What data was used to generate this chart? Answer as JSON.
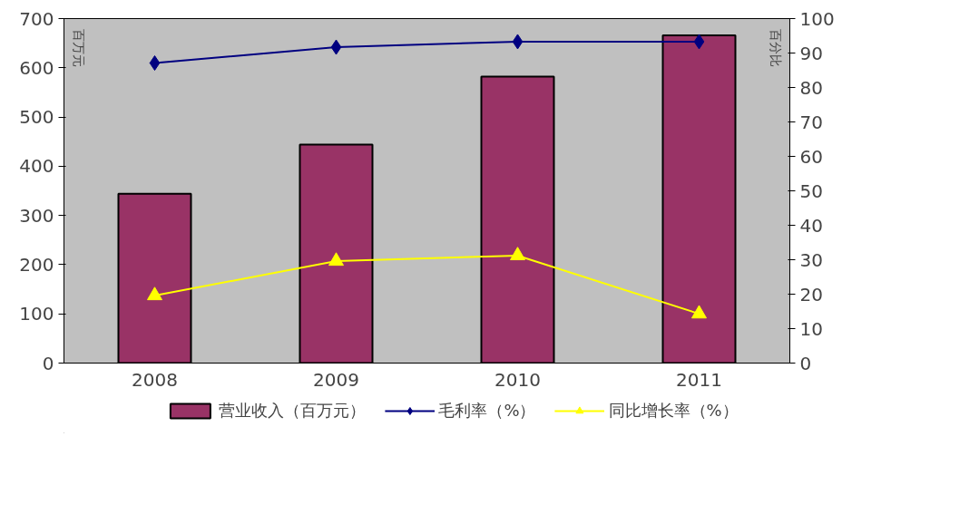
{
  "chart_data": {
    "type": "bar",
    "categories": [
      "2008",
      "2009",
      "2010",
      "2011"
    ],
    "series": [
      {
        "name": "营业收入（百万元）",
        "color": "#993366",
        "values": [
          344,
          444,
          582,
          666
        ]
      },
      {
        "name": "毛利率（%）",
        "type": "line",
        "axis": "y2",
        "color": "#000080",
        "marker": "diamond",
        "values": [
          87.1,
          91.7,
          93.3,
          93.3
        ]
      },
      {
        "name": "同比增长率（%）",
        "type": "line",
        "axis": "y2",
        "color": "#ffff00",
        "marker": "triangle",
        "values": [
          19.6,
          29.6,
          31.2,
          14.3
        ]
      }
    ],
    "ylim": [
      0,
      700
    ],
    "yticks": [
      0,
      100,
      200,
      300,
      400,
      500,
      600,
      700
    ],
    "y2lim": [
      0,
      100
    ],
    "y2ticks": [
      0,
      10,
      20,
      30,
      40,
      50,
      60,
      70,
      80,
      90,
      100
    ],
    "annotations": [
      "百万元",
      "百分比"
    ],
    "grid": false,
    "legend": "bottom"
  }
}
